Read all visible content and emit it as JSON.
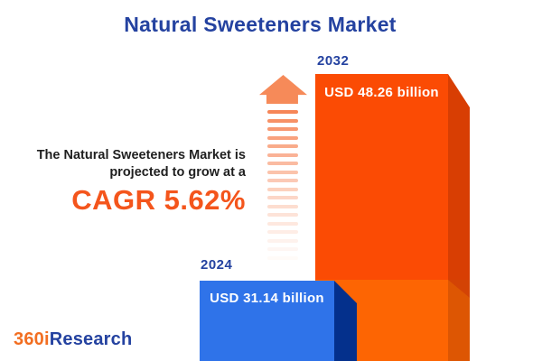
{
  "title": "Natural Sweeteners Market",
  "annotation": {
    "line1": "The Natural Sweeteners Market is",
    "line2": "projected to grow at a",
    "cagr": "CAGR 5.62%"
  },
  "bars": {
    "b2024": {
      "year": "2024",
      "value_label": "USD 31.14 billion"
    },
    "b2032": {
      "year": "2032",
      "value_label": "USD 48.26 billion"
    }
  },
  "logo": {
    "prefix": "360i",
    "suffix": "Research"
  },
  "colors": {
    "title_blue": "#2442a0",
    "text_dark": "#1f1f1f",
    "accent_orange": "#f4551c",
    "bar_2024_front": "#2f73e9",
    "bar_2024_side": "#04308c",
    "bar_2032_front_growth": "#fb4b04",
    "bar_2032_front_base": "#fd6503",
    "bar_2032_side_growth": "#d83e03",
    "bar_2032_side_base": "#dd5603",
    "bar_2032_side_bevel": "#d34305",
    "arrow_orange": "#f68a59",
    "logo_orange": "#f26e21"
  },
  "chart_data": {
    "type": "bar",
    "title": "Natural Sweeteners Market",
    "categories": [
      "2024",
      "2032"
    ],
    "values": [
      31.14,
      48.26
    ],
    "unit": "USD billion",
    "value_labels": [
      "USD 31.14 billion",
      "USD 48.26 billion"
    ],
    "cagr_percent": 5.62,
    "annotation": "The Natural Sweeteners Market is projected to grow at a CAGR 5.62%",
    "legend": false,
    "axes": false,
    "series_colors": {
      "2024": "#2f73e9",
      "2032": "#fb4b04"
    }
  }
}
